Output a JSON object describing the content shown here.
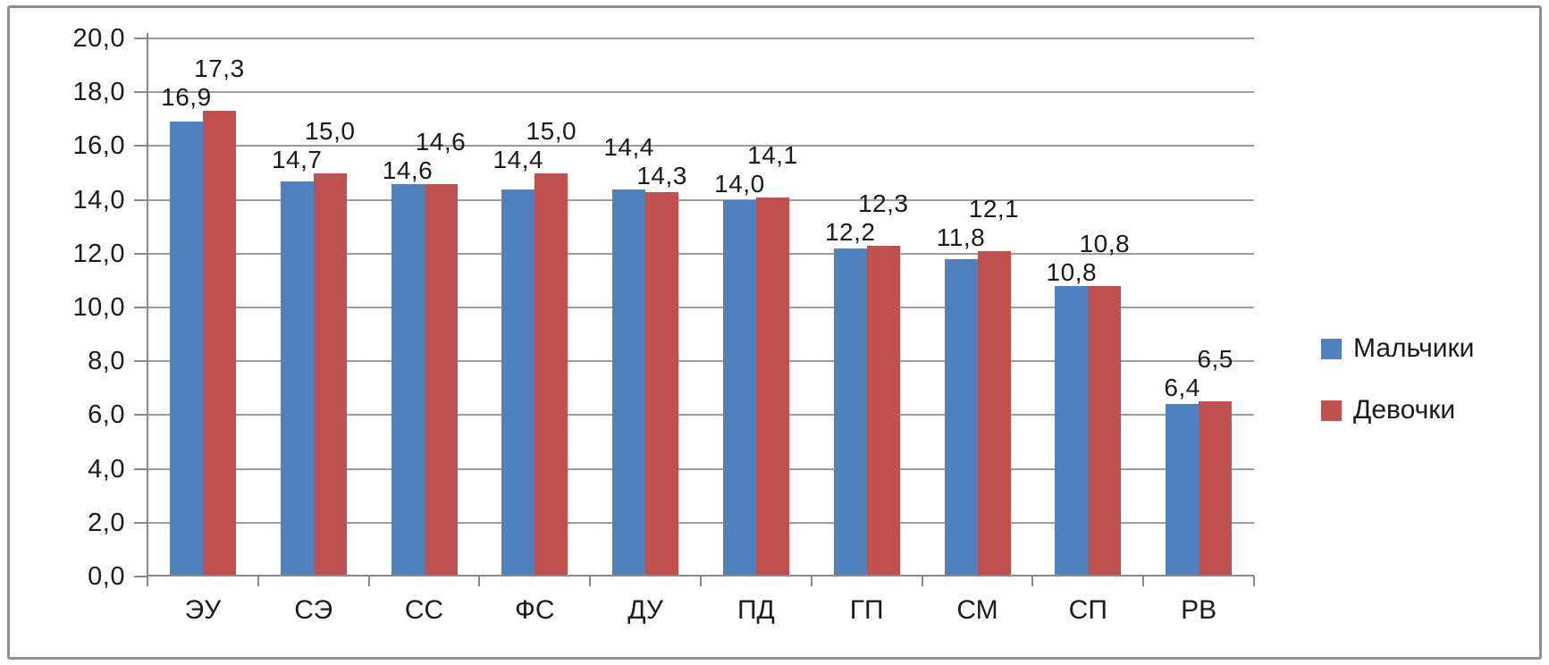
{
  "chart_data": {
    "type": "bar",
    "title": "",
    "xlabel": "",
    "ylabel": "",
    "categories": [
      "ЭУ",
      "СЭ",
      "СС",
      "ФС",
      "ДУ",
      "ПД",
      "ГП",
      "СМ",
      "СП",
      "РВ"
    ],
    "series": [
      {
        "name": "Мальчики",
        "color": "#4F81BD",
        "values": [
          16.9,
          14.7,
          14.6,
          14.4,
          14.4,
          14.0,
          12.2,
          11.8,
          10.8,
          6.4
        ],
        "labels": [
          "16,9",
          "14,7",
          "14,6",
          "14,4",
          "14,4",
          "14,0",
          "12,2",
          "11,8",
          "10,8",
          "6,4"
        ]
      },
      {
        "name": "Девочки",
        "color": "#C0504D",
        "values": [
          17.3,
          15.0,
          14.6,
          15.0,
          14.3,
          14.1,
          12.3,
          12.1,
          10.8,
          6.5
        ],
        "labels": [
          "17,3",
          "15,0",
          "14,6",
          "15,0",
          "14,3",
          "14,1",
          "12,3",
          "12,1",
          "10,8",
          "6,5"
        ]
      }
    ],
    "y_axis": {
      "min": 0,
      "max": 20,
      "step": 2,
      "tick_labels": [
        "0,0",
        "2,0",
        "4,0",
        "6,0",
        "8,0",
        "10,0",
        "12,0",
        "14,0",
        "16,0",
        "18,0",
        "20,0"
      ]
    },
    "grid": true,
    "legend_position": "right",
    "colors": {
      "gridline": "#9c9c9c",
      "axis": "#898989",
      "text": "#1a1a1a",
      "frame_border": "#8f8f8f",
      "background": "#ffffff"
    }
  }
}
